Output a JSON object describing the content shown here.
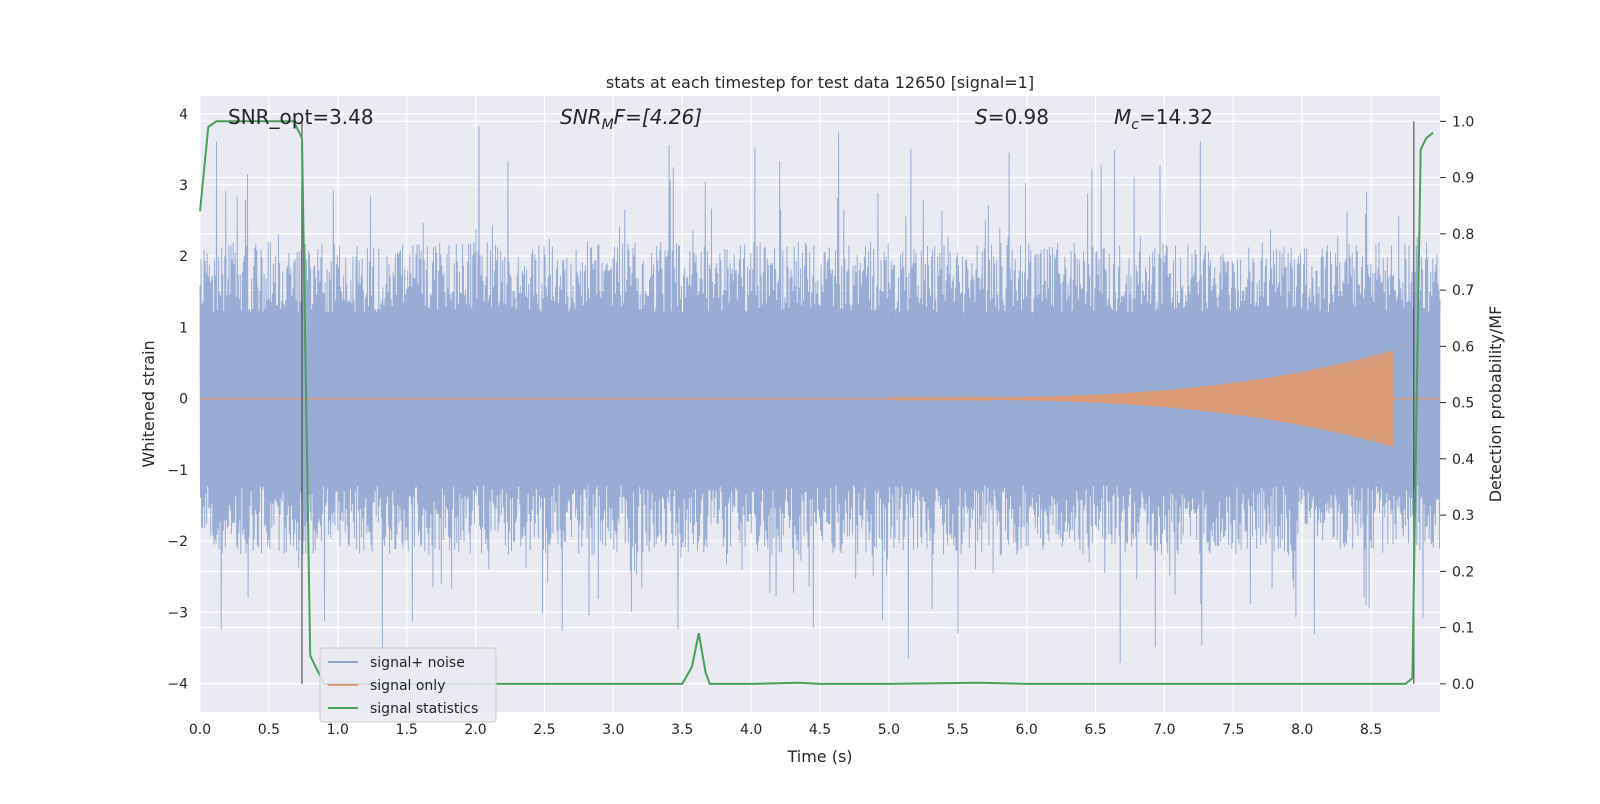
{
  "chart_data": {
    "type": "line",
    "title": "stats at each timestep for test data 12650 [signal=1]",
    "xlabel": "Time (s)",
    "ylabel": "Whitened strain",
    "y2label": "Detection probability/MF",
    "xlim": [
      0.0,
      9.0
    ],
    "ylim": [
      -4.4,
      4.25
    ],
    "y2lim": [
      -0.05,
      1.045
    ],
    "x_ticks": [
      "0.0",
      "0.5",
      "1.0",
      "1.5",
      "2.0",
      "2.5",
      "3.0",
      "3.5",
      "4.0",
      "4.5",
      "5.0",
      "5.5",
      "6.0",
      "6.5",
      "7.0",
      "7.5",
      "8.0",
      "8.5"
    ],
    "y_ticks": [
      "−4",
      "−3",
      "−2",
      "−1",
      "0",
      "1",
      "2",
      "3",
      "4"
    ],
    "y2_ticks": [
      "0.0",
      "0.1",
      "0.2",
      "0.3",
      "0.4",
      "0.5",
      "0.6",
      "0.7",
      "0.8",
      "0.9",
      "1.0"
    ],
    "grid": true,
    "legend_placement": "lower-left",
    "annotations": [
      {
        "id": "snr-opt",
        "text": "SNR_opt=3.48"
      },
      {
        "id": "snr-mf",
        "text": "SNR",
        "sub": "M",
        "tail": "F=[4.26]"
      },
      {
        "id": "s-stat",
        "text": "S",
        "tail": "=0.98"
      },
      {
        "id": "mc",
        "text": "M",
        "sub": "c",
        "tail": "=14.32"
      }
    ],
    "vlines": [
      0.74,
      8.81
    ],
    "series": [
      {
        "name": "signal+ noise",
        "color": "#8fa5d0",
        "noise_envelope": {
          "typical_upper": 2.2,
          "typical_lower": -2.2,
          "max": 3.85,
          "min": -4.0
        }
      },
      {
        "name": "signal only",
        "color": "#dd9a76",
        "chirp": {
          "x_start": 5.0,
          "x_end": 8.66,
          "amp_start": 0.01,
          "amp_end": 0.68
        }
      },
      {
        "name": "signal statistics",
        "color": "#4c9e5b",
        "axis": "right",
        "x": [
          0.0,
          0.06,
          0.12,
          0.3,
          0.5,
          0.68,
          0.74,
          0.8,
          0.9,
          1.2,
          2.0,
          3.0,
          3.5,
          3.57,
          3.62,
          3.67,
          3.7,
          4.0,
          4.35,
          4.5,
          5.0,
          5.65,
          6.0,
          7.0,
          8.0,
          8.75,
          8.8,
          8.83,
          8.86,
          8.9,
          8.95
        ],
        "y": [
          0.84,
          0.99,
          1.0,
          1.0,
          1.0,
          1.0,
          0.97,
          0.05,
          0.0,
          0.0,
          0.0,
          0.0,
          0.0,
          0.03,
          0.09,
          0.02,
          0.0,
          0.0,
          0.002,
          0.0,
          0.0,
          0.002,
          0.0,
          0.0,
          0.0,
          0.0,
          0.01,
          0.5,
          0.95,
          0.97,
          0.98
        ]
      }
    ]
  }
}
